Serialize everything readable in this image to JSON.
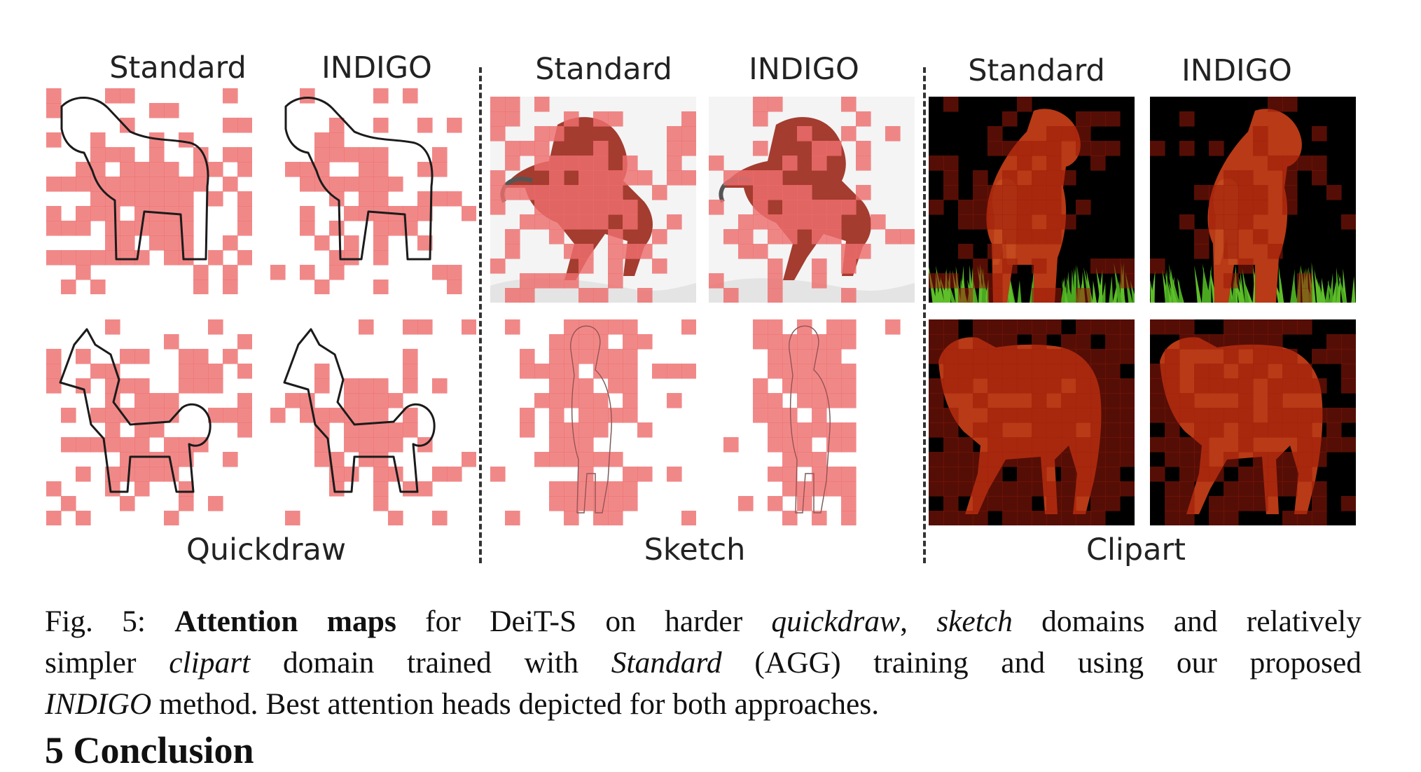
{
  "figure": {
    "column_headers": [
      "Standard",
      "INDIGO",
      "Standard",
      "INDIGO",
      "Standard",
      "INDIGO"
    ],
    "group_labels": [
      "Quickdraw",
      "Sketch",
      "Clipart"
    ],
    "overlay_color": "#ee6e6e",
    "clipart_overlay_color": "#9b1a0a"
  },
  "caption": {
    "prefix": "Fig. 5: ",
    "bold": "Attention maps",
    "t1": " for DeiT-S on harder ",
    "i1": "quickdraw",
    "t2": ", ",
    "i2": "sketch",
    "t3": " domains and relatively",
    "t4": "simpler ",
    "i3": "clipart",
    "t5": " domain trained with ",
    "i4": "Standard",
    "t6": " (AGG) training and using our proposed",
    "i5": "INDIGO",
    "t7": " method. Best attention heads depicted for both approaches."
  },
  "section_heading": "5   Conclusion"
}
